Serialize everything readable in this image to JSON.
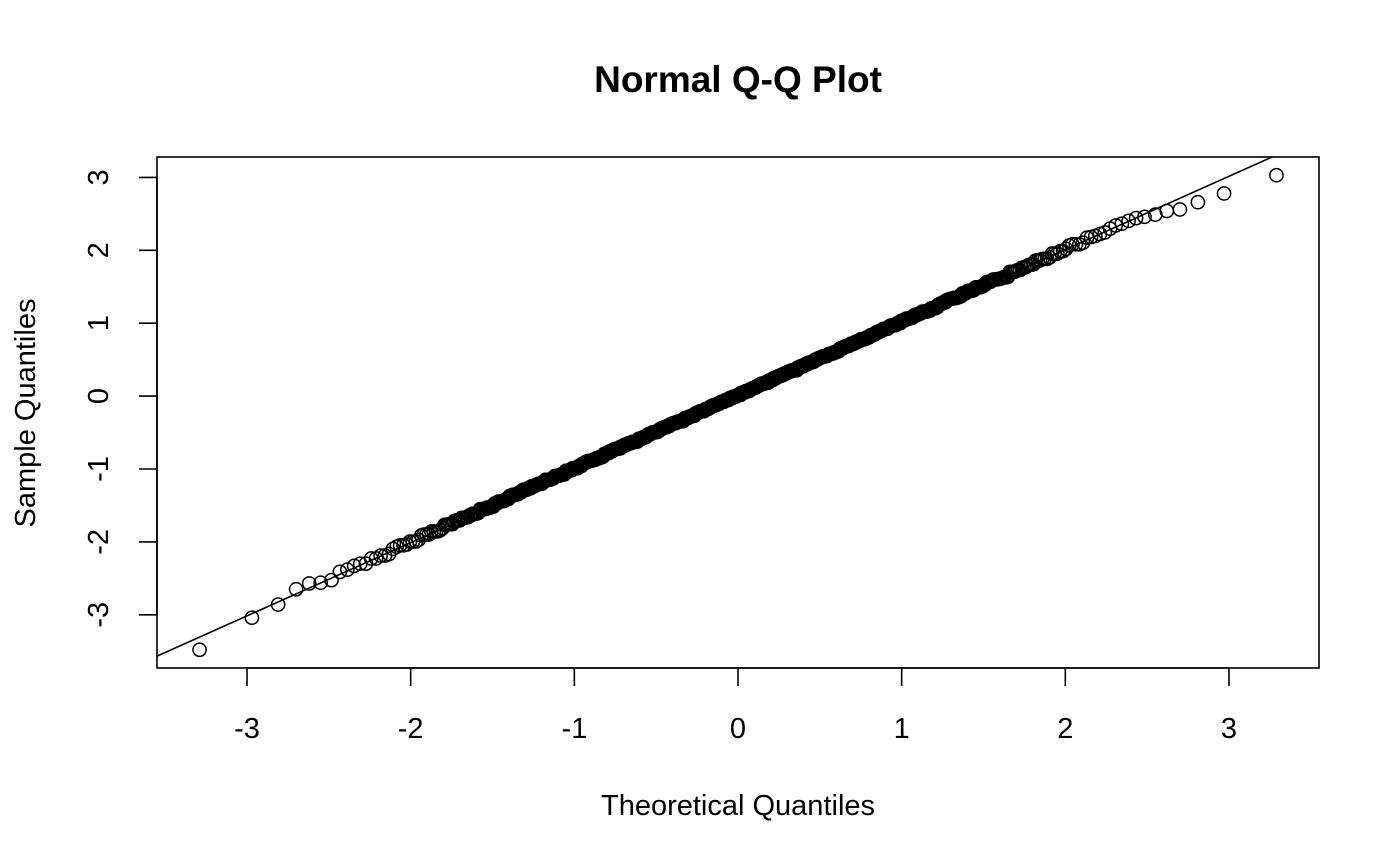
{
  "chart_data": {
    "type": "scatter",
    "title": "Normal Q-Q Plot",
    "xlabel": "Theoretical Quantiles",
    "ylabel": "Sample Quantiles",
    "xlim": [
      -3.55,
      3.55
    ],
    "ylim": [
      -3.73,
      3.28
    ],
    "x_ticks": [
      -3,
      -2,
      -1,
      0,
      1,
      2,
      3
    ],
    "y_ticks": [
      -3,
      -2,
      -1,
      0,
      1,
      2,
      3
    ],
    "x_tick_labels": [
      "-3",
      "-2",
      "-1",
      "0",
      "1",
      "2",
      "3"
    ],
    "y_tick_labels": [
      "-3",
      "-2",
      "-1",
      "0",
      "1",
      "2",
      "3"
    ],
    "grid": false,
    "legend": "none",
    "marker": "open-circle",
    "sample_size": 1000,
    "reference_line": {
      "intercept": 0.0,
      "slope": 1.005
    },
    "outlier_points": [
      {
        "x": -3.29,
        "y": -3.48
      },
      {
        "x": -2.97,
        "y": -3.04
      },
      {
        "x": -2.81,
        "y": -2.86
      },
      {
        "x": -2.7,
        "y": -2.65
      },
      {
        "x": -2.62,
        "y": -2.57
      },
      {
        "x": -2.55,
        "y": -2.56
      },
      {
        "x": 2.55,
        "y": 2.49
      },
      {
        "x": 2.62,
        "y": 2.54
      },
      {
        "x": 2.7,
        "y": 2.56
      },
      {
        "x": 2.81,
        "y": 2.66
      },
      {
        "x": 2.97,
        "y": 2.78
      },
      {
        "x": 3.29,
        "y": 3.03
      }
    ],
    "line_color": "#000000",
    "point_color": "#000000"
  }
}
